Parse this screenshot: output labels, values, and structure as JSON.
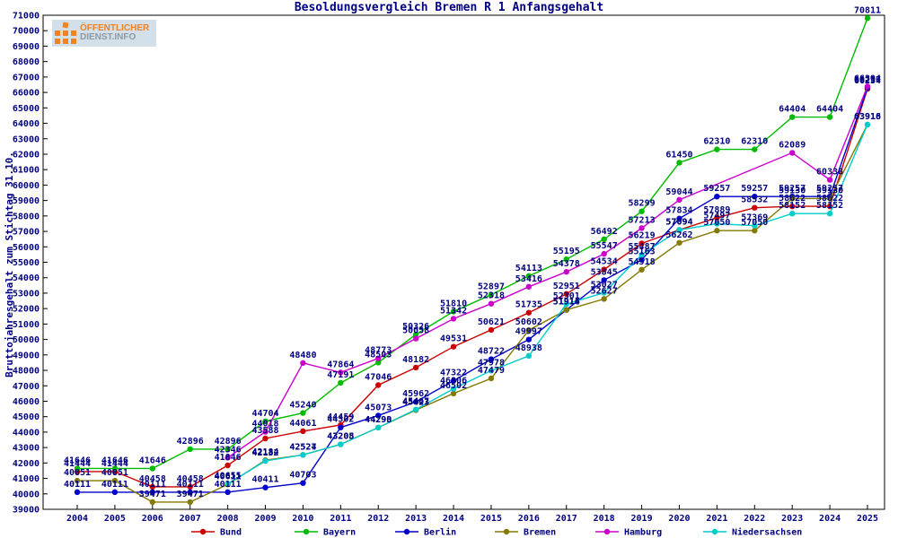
{
  "title": "Besoldungsvergleich Bremen R 1 Anfangsgehalt",
  "logo": {
    "line1": "ÖFFENTLICHER",
    "line2": "DIENST.INFO"
  },
  "y_axis": {
    "label": "Bruttojahresgehalt zum Stichtag 31.10.",
    "min": 39000,
    "max": 71000,
    "step": 1000
  },
  "text_color": "#000080",
  "chart_data": {
    "type": "line",
    "title": "Besoldungsvergleich Bremen R 1 Anfangsgehalt",
    "xlabel": "",
    "ylabel": "Bruttojahresgehalt zum Stichtag 31.10.",
    "ylim": [
      39000,
      71000
    ],
    "grid": false,
    "legend_position": "bottom",
    "categories": [
      2004,
      2005,
      2006,
      2007,
      2008,
      2009,
      2010,
      2011,
      2012,
      2013,
      2014,
      2015,
      2016,
      2017,
      2018,
      2019,
      2020,
      2021,
      2022,
      2023,
      2024,
      2025
    ],
    "series": [
      {
        "name": "Bund",
        "color": "#cc0000",
        "values": [
          41444,
          41444,
          40458,
          40458,
          41846,
          43588,
          44061,
          44459,
          47046,
          48182,
          49531,
          50621,
          51735,
          52951,
          54534,
          56219,
          57094,
          57889,
          58532,
          58622,
          58622,
          66234
        ]
      },
      {
        "name": "Bayern",
        "color": "#00bb00",
        "values": [
          41646,
          41646,
          41646,
          42896,
          42896,
          44704,
          45240,
          47191,
          48503,
          50326,
          51810,
          52897,
          54113,
          55195,
          56492,
          58299,
          61450,
          62310,
          62310,
          64404,
          64404,
          70811
        ]
      },
      {
        "name": "Berlin",
        "color": "#0000cc",
        "values": [
          40111,
          40111,
          40111,
          40111,
          40111,
          40411,
          40703,
          44302,
          45073,
          45962,
          47322,
          48722,
          49997,
          51916,
          53845,
          55163,
          57834,
          59257,
          59257,
          59257,
          59257,
          66297
        ]
      },
      {
        "name": "Bremen",
        "color": "#847a00",
        "values": [
          40851,
          40851,
          39471,
          39471,
          40611,
          42184,
          42524,
          43208,
          44293,
          45423,
          46502,
          47479,
          50602,
          51914,
          52627,
          54518,
          56262,
          57050,
          57050,
          59130,
          59130,
          63916
        ]
      },
      {
        "name": "Hamburg",
        "color": "#cc00cc",
        "values": [
          null,
          null,
          null,
          null,
          42346,
          44018,
          48480,
          47864,
          48773,
          50058,
          51342,
          52318,
          53416,
          54378,
          55547,
          57213,
          59044,
          null,
          null,
          62089,
          60338,
          66394
        ]
      },
      {
        "name": "Niedersachsen",
        "color": "#00cccc",
        "values": [
          null,
          null,
          null,
          null,
          40655,
          42132,
          42527,
          43205,
          44290,
          45467,
          46806,
          47978,
          48938,
          52301,
          53027,
          55487,
          57094,
          57497,
          57369,
          58152,
          58152,
          63918
        ]
      }
    ]
  }
}
